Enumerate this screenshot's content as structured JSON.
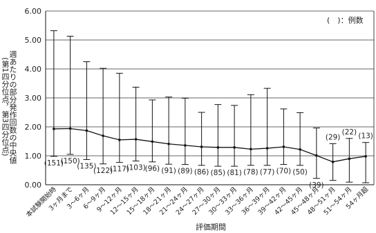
{
  "legend": "(　)：例数",
  "chart_data": {
    "type": "line",
    "ylabel": "週あたりの部分発作回数の中央値\n(第1四分位点，第3四分位点)",
    "xlabel": "評価期間",
    "ylim": [
      0,
      6
    ],
    "yticks": [
      "0.00",
      "1.00",
      "2.00",
      "3.00",
      "4.00",
      "5.00",
      "6.00"
    ],
    "grid": true,
    "categories": [
      "本試験開始時",
      "3ヶ月まで",
      "3～6ヶ月",
      "6～9ヶ月",
      "9～12ヶ月",
      "12～15ヶ月",
      "15～18ヶ月",
      "18～21ヶ月",
      "21～24ヶ月",
      "24～27ヶ月",
      "27～30ヶ月",
      "30～33ヶ月",
      "33～36ヶ月",
      "36～39ヶ月",
      "39～42ヶ月",
      "42～45ヶ月",
      "45～48ヶ月",
      "48～51ヶ月",
      "51～54ヶ月",
      "54ヶ月超"
    ],
    "median": [
      1.93,
      1.94,
      1.87,
      1.69,
      1.55,
      1.57,
      1.49,
      1.41,
      1.36,
      1.31,
      1.29,
      1.29,
      1.23,
      1.26,
      1.31,
      1.22,
      1.01,
      0.79,
      0.9,
      0.98
    ],
    "q1": [
      0.98,
      1.05,
      0.87,
      0.72,
      0.77,
      0.82,
      0.79,
      0.71,
      0.7,
      0.67,
      0.64,
      0.64,
      0.67,
      0.67,
      0.7,
      0.67,
      0.22,
      0.15,
      0.09,
      0.07
    ],
    "q3": [
      5.32,
      5.13,
      4.25,
      4.02,
      3.85,
      3.37,
      2.93,
      3.03,
      2.99,
      2.5,
      2.77,
      2.74,
      3.11,
      3.33,
      2.62,
      2.49,
      1.96,
      1.42,
      1.6,
      1.46
    ],
    "n_labels": [
      "(151)",
      "(150)",
      "(135)",
      "(122)",
      "(117)",
      "(103)",
      "(96)",
      "(91)",
      "(89)",
      "(86)",
      "(85)",
      "(81)",
      "(78)",
      "(77)",
      "(70)",
      "(50)",
      "(39)",
      "(29)",
      "(22)",
      "(13)"
    ],
    "n_label_side": [
      "below",
      "below",
      "below",
      "below",
      "below",
      "below",
      "below",
      "below",
      "below",
      "below",
      "below",
      "below",
      "below",
      "below",
      "below",
      "below",
      "below",
      "above",
      "above",
      "above"
    ]
  },
  "colors": {
    "line": "#111111",
    "grid": "#333333",
    "text": "#222222"
  }
}
